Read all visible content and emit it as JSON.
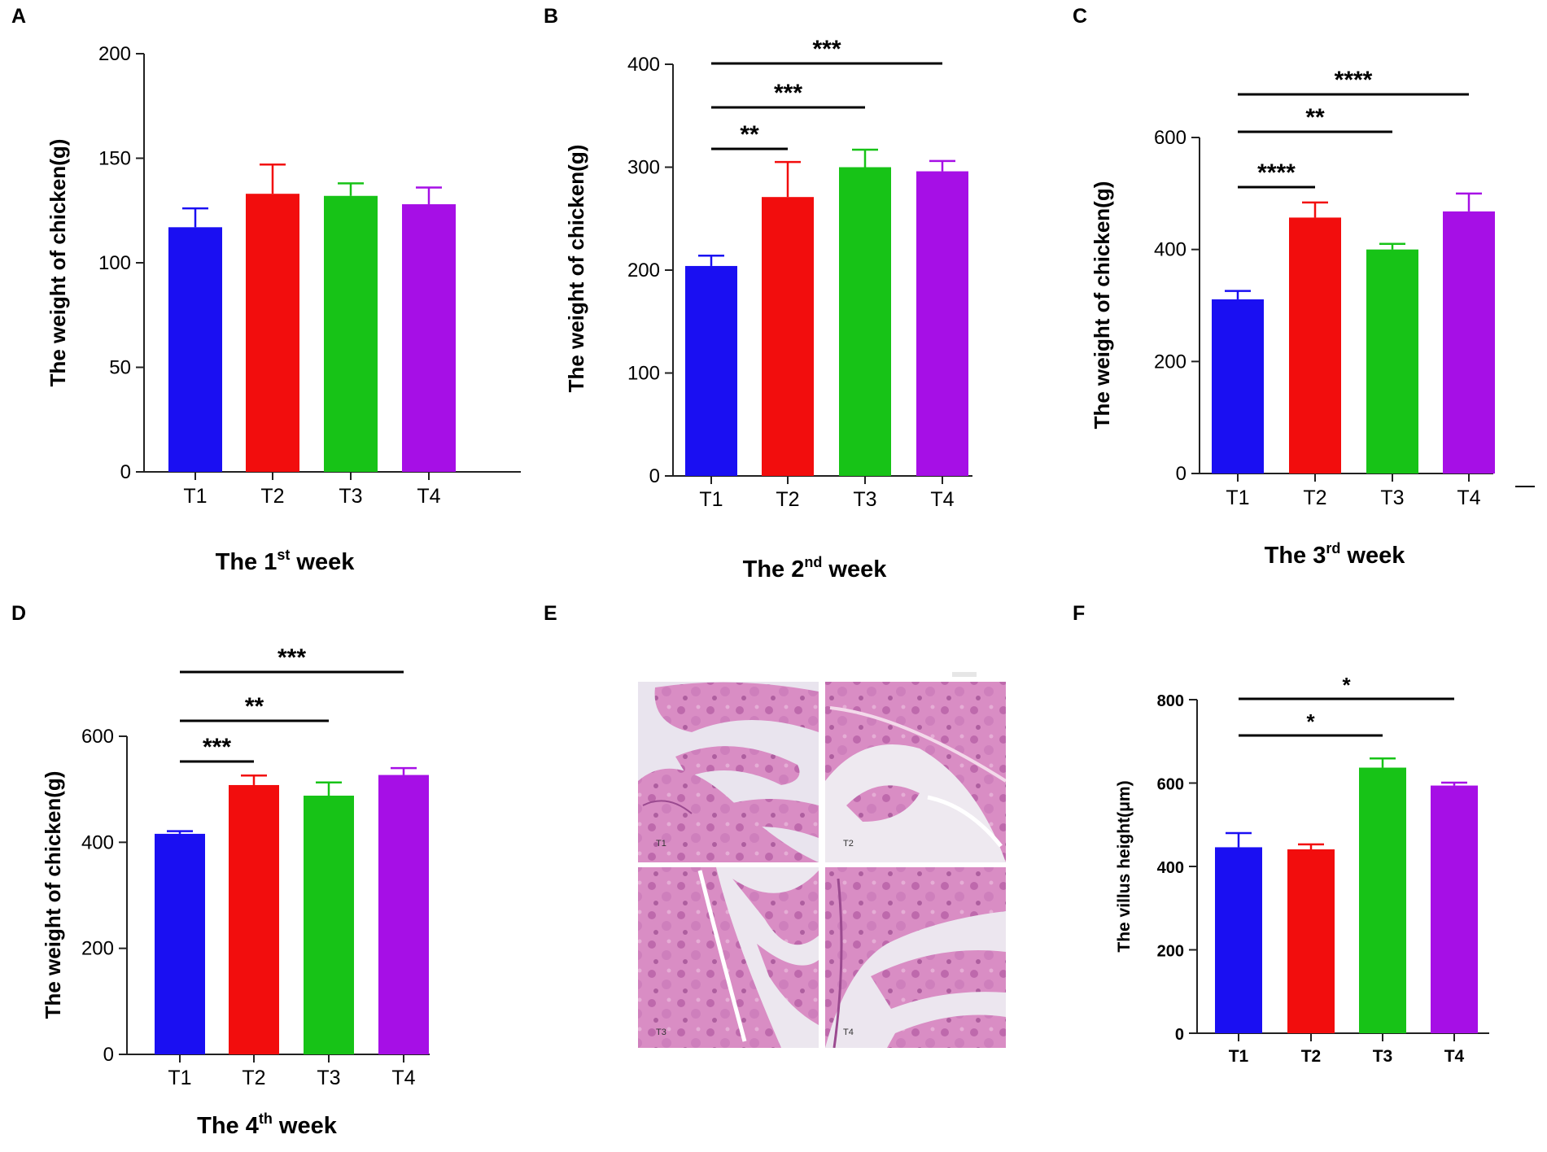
{
  "colors": {
    "T1": "#1a0ff2",
    "T2": "#f20d0d",
    "T3": "#17c317",
    "T4": "#a60fe6"
  },
  "chart_data": [
    {
      "panel": "A",
      "type": "bar",
      "categories": [
        "T1",
        "T2",
        "T3",
        "T4"
      ],
      "values": [
        117,
        133,
        132,
        128
      ],
      "errors": [
        9,
        14,
        6,
        8
      ],
      "ylim": [
        0,
        200
      ],
      "yticks": [
        0,
        50,
        100,
        150,
        200
      ],
      "ylabel": "The weight of chicken(g)",
      "xlabel": {
        "pre": "The 1",
        "sup": "st",
        "post": " week"
      },
      "significance": []
    },
    {
      "panel": "B",
      "type": "bar",
      "categories": [
        "T1",
        "T2",
        "T3",
        "T4"
      ],
      "values": [
        204,
        271,
        300,
        296
      ],
      "errors": [
        10,
        34,
        17,
        10
      ],
      "ylim": [
        0,
        400
      ],
      "yticks": [
        0,
        100,
        200,
        300,
        400
      ],
      "ylabel": "The weight of chicken(g)",
      "xlabel": {
        "pre": "The 2",
        "sup": "nd",
        "post": " week"
      },
      "significance": [
        {
          "from": "T1",
          "to": "T4",
          "label": "***"
        },
        {
          "from": "T1",
          "to": "T3",
          "label": "***"
        },
        {
          "from": "T1",
          "to": "T2",
          "label": "**"
        }
      ]
    },
    {
      "panel": "C",
      "type": "bar",
      "categories": [
        "T1",
        "T2",
        "T3",
        "T4"
      ],
      "values": [
        311,
        457,
        400,
        468
      ],
      "errors": [
        15,
        27,
        10,
        32
      ],
      "ylim": [
        0,
        600
      ],
      "yticks": [
        0,
        200,
        400,
        600
      ],
      "ylabel": "The weight of chicken(g)",
      "xlabel": {
        "pre": "The 3",
        "sup": "rd",
        "post": " week"
      },
      "significance": [
        {
          "from": "T1",
          "to": "T4",
          "label": "****"
        },
        {
          "from": "T1",
          "to": "T3",
          "label": "**"
        },
        {
          "from": "T1",
          "to": "T2",
          "label": "****"
        }
      ]
    },
    {
      "panel": "D",
      "type": "bar",
      "categories": [
        "T1",
        "T2",
        "T3",
        "T4"
      ],
      "values": [
        416,
        508,
        488,
        527
      ],
      "errors": [
        5,
        18,
        25,
        13
      ],
      "ylim": [
        0,
        600
      ],
      "yticks": [
        0,
        200,
        400,
        600
      ],
      "ylabel": "The weight of chicken(g)",
      "xlabel": {
        "pre": "The 4",
        "sup": "th",
        "post": " week"
      },
      "significance": [
        {
          "from": "T1",
          "to": "T4",
          "label": "***"
        },
        {
          "from": "T1",
          "to": "T3",
          "label": "**"
        },
        {
          "from": "T1",
          "to": "T2",
          "label": "***"
        }
      ]
    },
    {
      "panel": "F",
      "type": "bar",
      "categories": [
        "T1",
        "T2",
        "T3",
        "T4"
      ],
      "values": [
        446,
        441,
        637,
        594
      ],
      "errors": [
        34,
        12,
        22,
        7
      ],
      "ylim": [
        0,
        800
      ],
      "yticks": [
        0,
        200,
        400,
        600,
        800
      ],
      "ylabel": "The villus height(μm)",
      "significance": [
        {
          "from": "T1",
          "to": "T4",
          "label": "*"
        },
        {
          "from": "T1",
          "to": "T3",
          "label": "*"
        }
      ]
    }
  ],
  "micrograph": {
    "panel": "E",
    "labels": [
      "T1",
      "T2",
      "T3",
      "T4"
    ]
  }
}
